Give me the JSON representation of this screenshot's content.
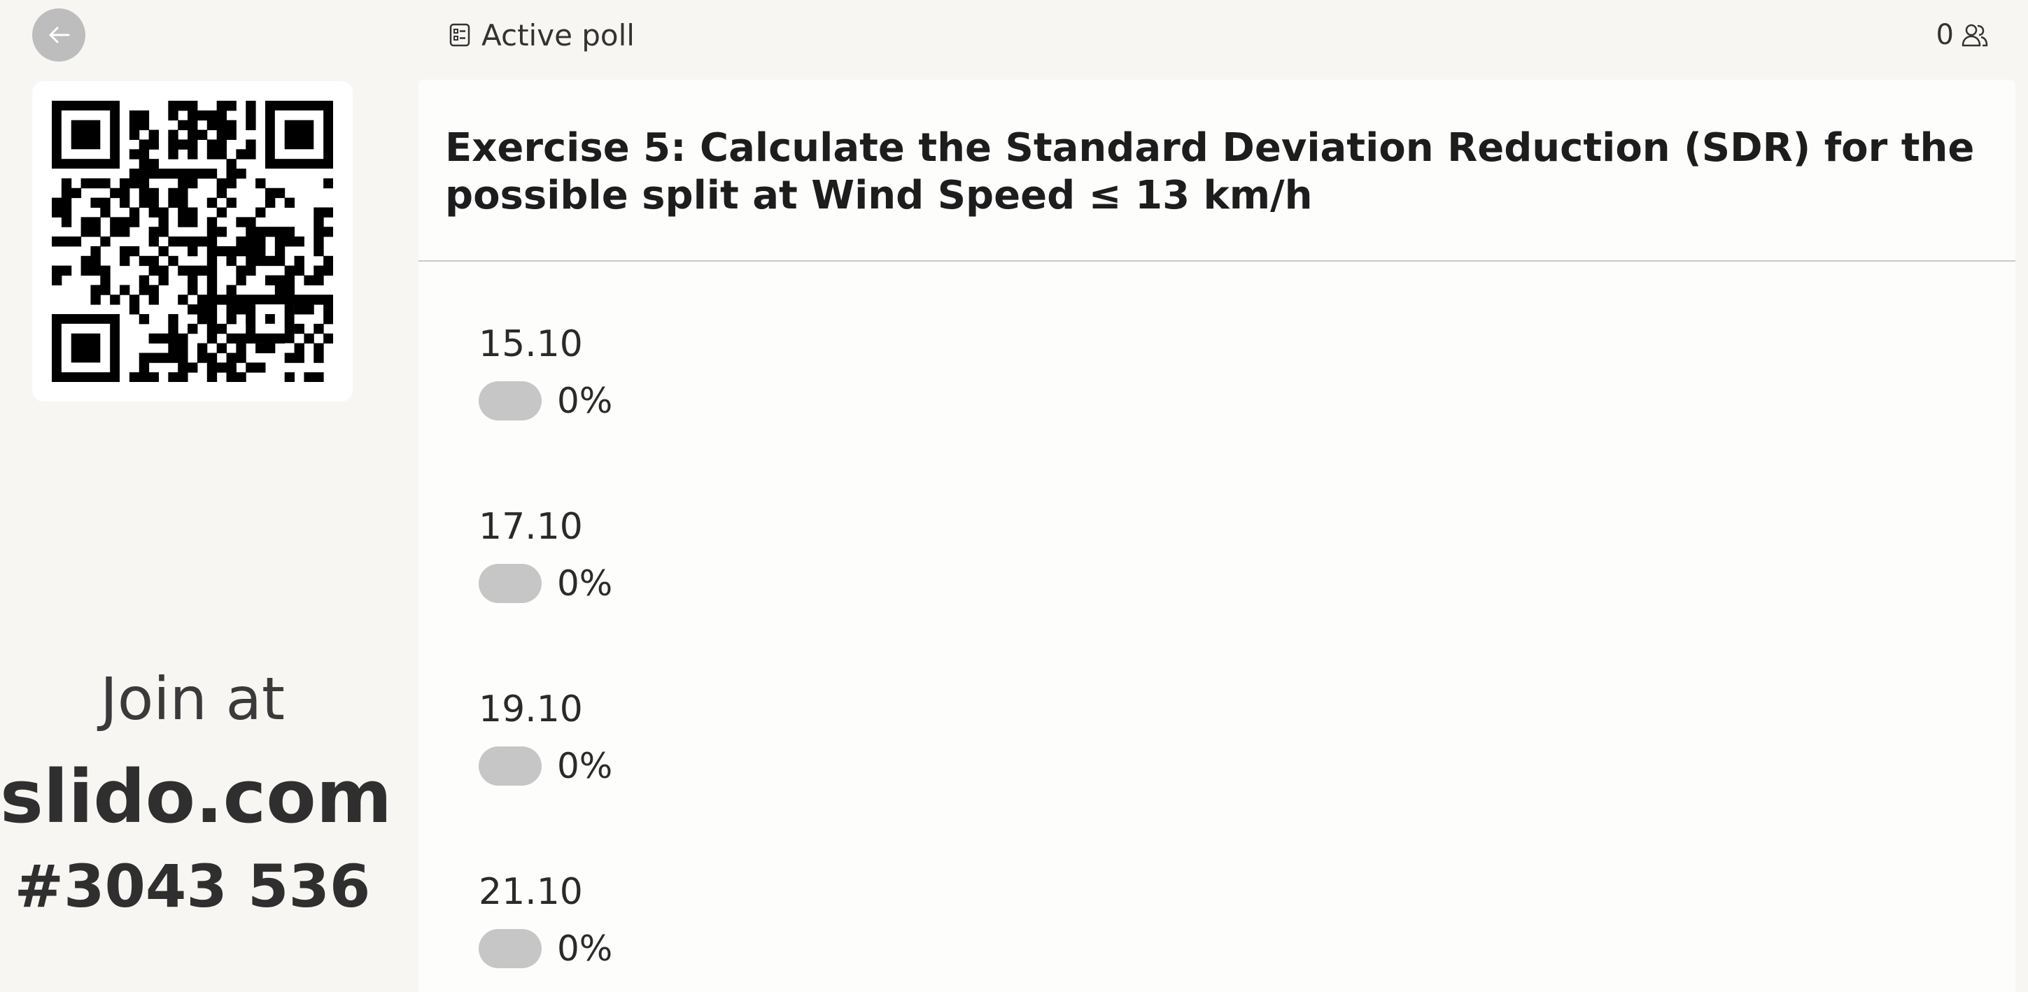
{
  "header": {
    "poll_status": "Active poll",
    "participant_count": "0"
  },
  "sidebar": {
    "join_text": "Join at",
    "site": "slido.com",
    "event_code": "#3043 536"
  },
  "poll": {
    "question": "Exercise 5: Calculate the Standard Deviation Reduction (SDR) for the possible split at Wind Speed ≤ 13 km/h",
    "options": [
      {
        "label": "15.10",
        "percent": "0%"
      },
      {
        "label": "17.10",
        "percent": "0%"
      },
      {
        "label": "19.10",
        "percent": "0%"
      },
      {
        "label": "21.10",
        "percent": "0%"
      }
    ]
  },
  "icons": {
    "back": "arrow-left-icon",
    "poll": "poll-list-icon",
    "participants": "people-icon",
    "qr": "qr-code"
  },
  "colors": {
    "background": "#f7f6f3",
    "panel": "#fdfdfc",
    "bar_empty": "#c6c6c6",
    "back_button": "#bdbdbd"
  }
}
